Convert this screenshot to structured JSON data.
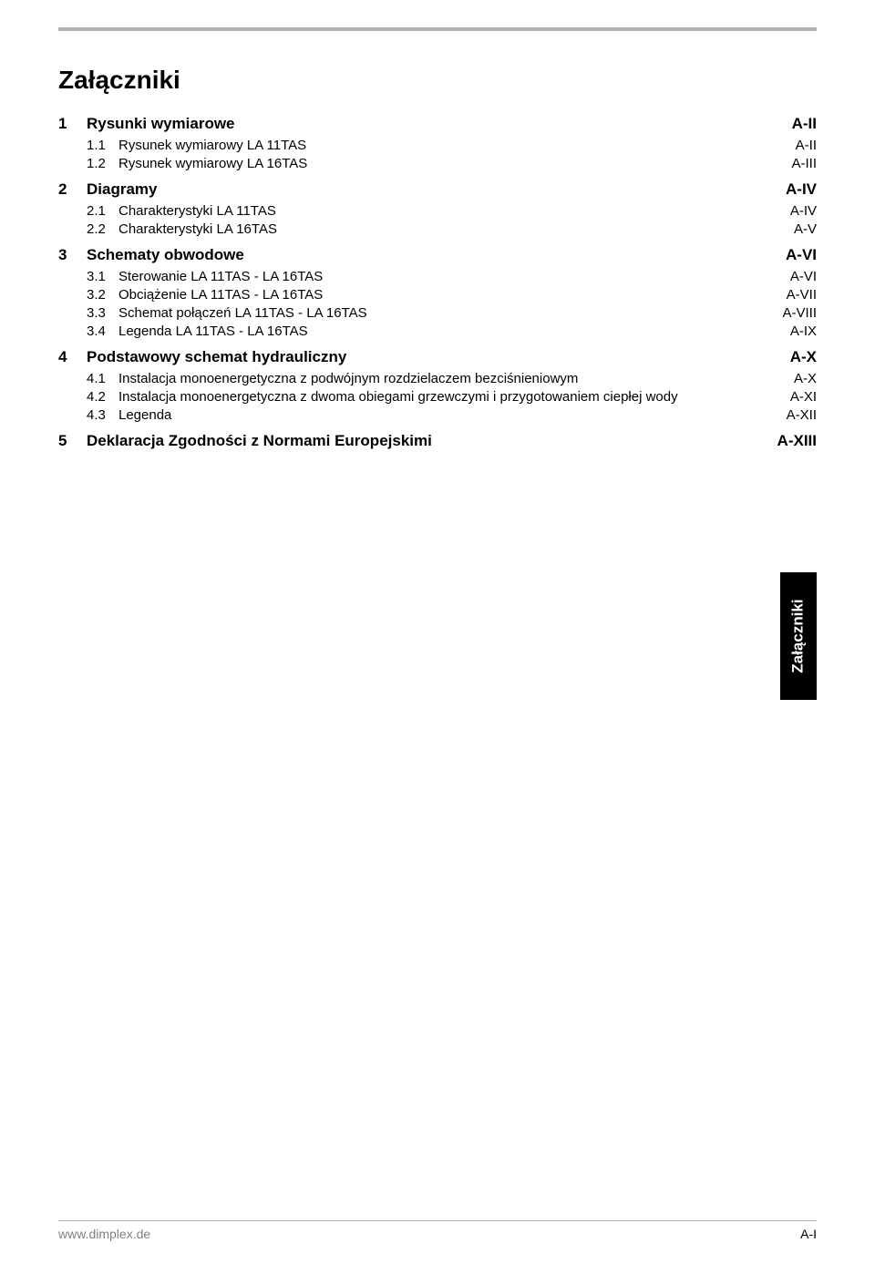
{
  "title": "Załączniki",
  "side_tab": "Załączniki",
  "footer": {
    "left": "www.dimplex.de",
    "right": "A-I"
  },
  "toc": [
    {
      "lvl": 1,
      "num": "1",
      "text": "Rysunki wymiarowe",
      "page": "A-II"
    },
    {
      "lvl": 2,
      "num": "1.1",
      "text": "Rysunek wymiarowy LA 11TAS",
      "page": "A-II"
    },
    {
      "lvl": 2,
      "num": "1.2",
      "text": "Rysunek wymiarowy LA 16TAS",
      "page": "A-III"
    },
    {
      "lvl": 1,
      "num": "2",
      "text": "Diagramy",
      "page": "A-IV"
    },
    {
      "lvl": 2,
      "num": "2.1",
      "text": "Charakterystyki LA 11TAS",
      "page": "A-IV"
    },
    {
      "lvl": 2,
      "num": "2.2",
      "text": "Charakterystyki LA 16TAS",
      "page": "A-V"
    },
    {
      "lvl": 1,
      "num": "3",
      "text": "Schematy obwodowe",
      "page": "A-VI"
    },
    {
      "lvl": 2,
      "num": "3.1",
      "text": "Sterowanie LA 11TAS - LA 16TAS",
      "page": "A-VI"
    },
    {
      "lvl": 2,
      "num": "3.2",
      "text": "Obciążenie LA 11TAS - LA 16TAS",
      "page": "A-VII"
    },
    {
      "lvl": 2,
      "num": "3.3",
      "text": "Schemat połączeń LA 11TAS - LA 16TAS",
      "page": "A-VIII"
    },
    {
      "lvl": 2,
      "num": "3.4",
      "text": "Legenda LA 11TAS - LA 16TAS",
      "page": "A-IX"
    },
    {
      "lvl": 1,
      "num": "4",
      "text": "Podstawowy schemat hydrauliczny",
      "page": "A-X"
    },
    {
      "lvl": 2,
      "num": "4.1",
      "text": "Instalacja monoenergetyczna z podwójnym rozdzielaczem bezciśnieniowym",
      "page": "A-X"
    },
    {
      "lvl": 2,
      "num": "4.2",
      "text": "Instalacja monoenergetyczna z dwoma obiegami grzewczymi i przygotowaniem ciepłej wody",
      "page": "A-XI"
    },
    {
      "lvl": 2,
      "num": "4.3",
      "text": "Legenda",
      "page": "A-XII"
    },
    {
      "lvl": 1,
      "num": "5",
      "text": "Deklaracja Zgodności z Normami Europejskimi",
      "page": "A-XIII"
    }
  ]
}
